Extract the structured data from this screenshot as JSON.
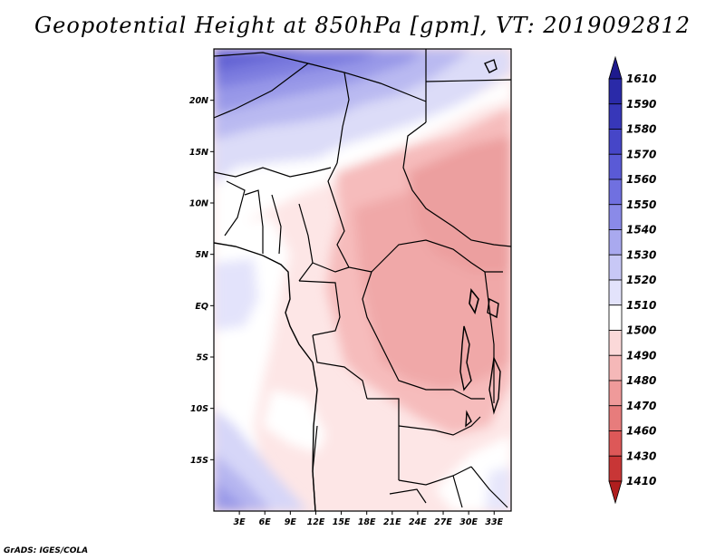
{
  "title": "Geopotential Height at 850hPa [gpm], VT: 2019092812",
  "footer": "GrADS: IGES/COLA",
  "map": {
    "lat_labels": [
      "20N",
      "15N",
      "10N",
      "5N",
      "EQ",
      "5S",
      "10S",
      "15S"
    ],
    "lon_labels": [
      "3E",
      "6E",
      "9E",
      "12E",
      "15E",
      "18E",
      "21E",
      "24E",
      "27E",
      "30E",
      "33E"
    ],
    "lon_range": [
      0,
      35
    ],
    "lat_range": [
      -20,
      25
    ]
  },
  "colorbar": {
    "labels": [
      "1610",
      "1590",
      "1580",
      "1570",
      "1560",
      "1550",
      "1540",
      "1530",
      "1520",
      "1510",
      "1500",
      "1490",
      "1480",
      "1470",
      "1460",
      "1430",
      "1410"
    ],
    "colors": [
      "#1e1a8e",
      "#2a2aa8",
      "#3737b9",
      "#4646c8",
      "#5a5ad6",
      "#7070e0",
      "#8a8ae8",
      "#a9a9ef",
      "#c8c8f6",
      "#e3e3fb",
      "#ffffff",
      "#fbd9d9",
      "#f5b8b8",
      "#ef9a9a",
      "#e77c7c",
      "#dd5858",
      "#c83636",
      "#b01e1e"
    ]
  }
}
